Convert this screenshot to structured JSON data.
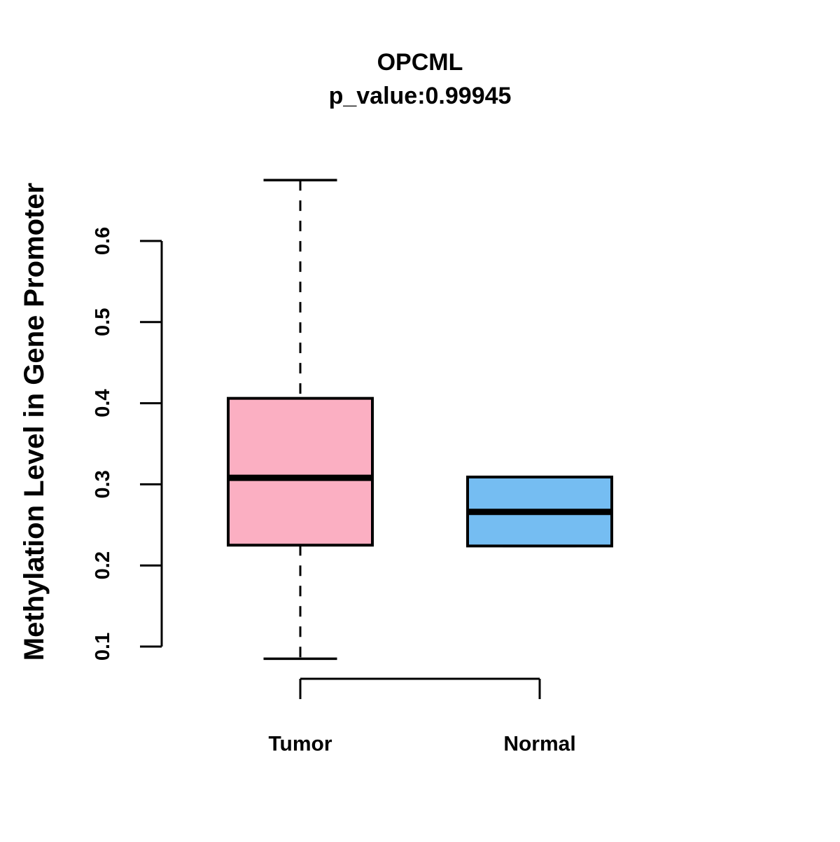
{
  "chart_data": {
    "type": "boxplot",
    "title": "OPCML",
    "subtitle": "p_value:0.99945",
    "ylabel": "Methylation Level in Gene Promoter",
    "xlabel": "",
    "categories": [
      "Tumor",
      "Normal"
    ],
    "yticks": [
      0.1,
      0.2,
      0.3,
      0.4,
      0.5,
      0.6
    ],
    "ylim": [
      0.084,
      0.675
    ],
    "grid": false,
    "legend": "none",
    "stroke_color": "#000000",
    "background_color": "#FFFFFF",
    "series": [
      {
        "name": "Tumor",
        "fill_color": "#FBAFC2",
        "whisker_low": 0.085,
        "q1": 0.225,
        "median": 0.308,
        "q3": 0.406,
        "whisker_high": 0.675
      },
      {
        "name": "Normal",
        "fill_color": "#75BDF2",
        "whisker_low": 0.224,
        "q1": 0.224,
        "median": 0.266,
        "q3": 0.309,
        "whisker_high": 0.309
      }
    ]
  }
}
